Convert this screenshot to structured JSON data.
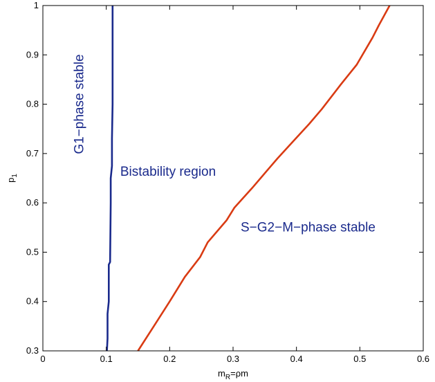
{
  "chart_data": {
    "type": "line",
    "title": "",
    "xlabel": {
      "main": "m",
      "sub": "R",
      "rest": "=ρm"
    },
    "ylabel": {
      "main": "p",
      "sub": "1"
    },
    "xlim": [
      0,
      0.6
    ],
    "ylim": [
      0.3,
      1.0
    ],
    "xticks": [
      0,
      0.1,
      0.2,
      0.3,
      0.4,
      0.5,
      0.6
    ],
    "xtick_labels": [
      "0",
      "0.1",
      "0.2",
      "0.3",
      "0.4",
      "0.5",
      "0.6"
    ],
    "yticks": [
      0.3,
      0.4,
      0.5,
      0.6,
      0.7,
      0.8,
      0.9,
      1.0
    ],
    "ytick_labels": [
      "0.3",
      "0.4",
      "0.5",
      "0.6",
      "0.7",
      "0.8",
      "0.9",
      "1"
    ],
    "grid": false,
    "series": [
      {
        "color": "#1a2a8c",
        "points": [
          [
            0.101,
            0.3
          ],
          [
            0.102,
            0.325
          ],
          [
            0.102,
            0.375
          ],
          [
            0.104,
            0.4
          ],
          [
            0.104,
            0.475
          ],
          [
            0.106,
            0.48
          ],
          [
            0.107,
            0.6
          ],
          [
            0.107,
            0.65
          ],
          [
            0.109,
            0.675
          ],
          [
            0.109,
            0.73
          ],
          [
            0.11,
            0.8
          ],
          [
            0.11,
            1.0
          ]
        ]
      },
      {
        "color": "#d93b13",
        "points": [
          [
            0.15,
            0.3
          ],
          [
            0.175,
            0.35
          ],
          [
            0.2,
            0.4
          ],
          [
            0.224,
            0.45
          ],
          [
            0.248,
            0.49
          ],
          [
            0.26,
            0.52
          ],
          [
            0.29,
            0.565
          ],
          [
            0.302,
            0.59
          ],
          [
            0.33,
            0.63
          ],
          [
            0.36,
            0.675
          ],
          [
            0.37,
            0.69
          ],
          [
            0.395,
            0.725
          ],
          [
            0.42,
            0.76
          ],
          [
            0.44,
            0.79
          ],
          [
            0.47,
            0.84
          ],
          [
            0.495,
            0.88
          ],
          [
            0.52,
            0.935
          ],
          [
            0.53,
            0.96
          ],
          [
            0.547,
            1.0
          ]
        ]
      }
    ],
    "annotations": [
      {
        "text": "G1−phase stable",
        "color": "#1a2a8c",
        "x": 0.064,
        "y": 0.8,
        "rotate": -90,
        "anchor": "middle"
      },
      {
        "text": "Bistability region",
        "color": "#1a2a8c",
        "x": 0.122,
        "y": 0.655,
        "rotate": 0,
        "anchor": "start"
      },
      {
        "text": "S−G2−M−phase stable",
        "color": "#1a2a8c",
        "x": 0.312,
        "y": 0.542,
        "rotate": 0,
        "anchor": "start"
      }
    ]
  }
}
